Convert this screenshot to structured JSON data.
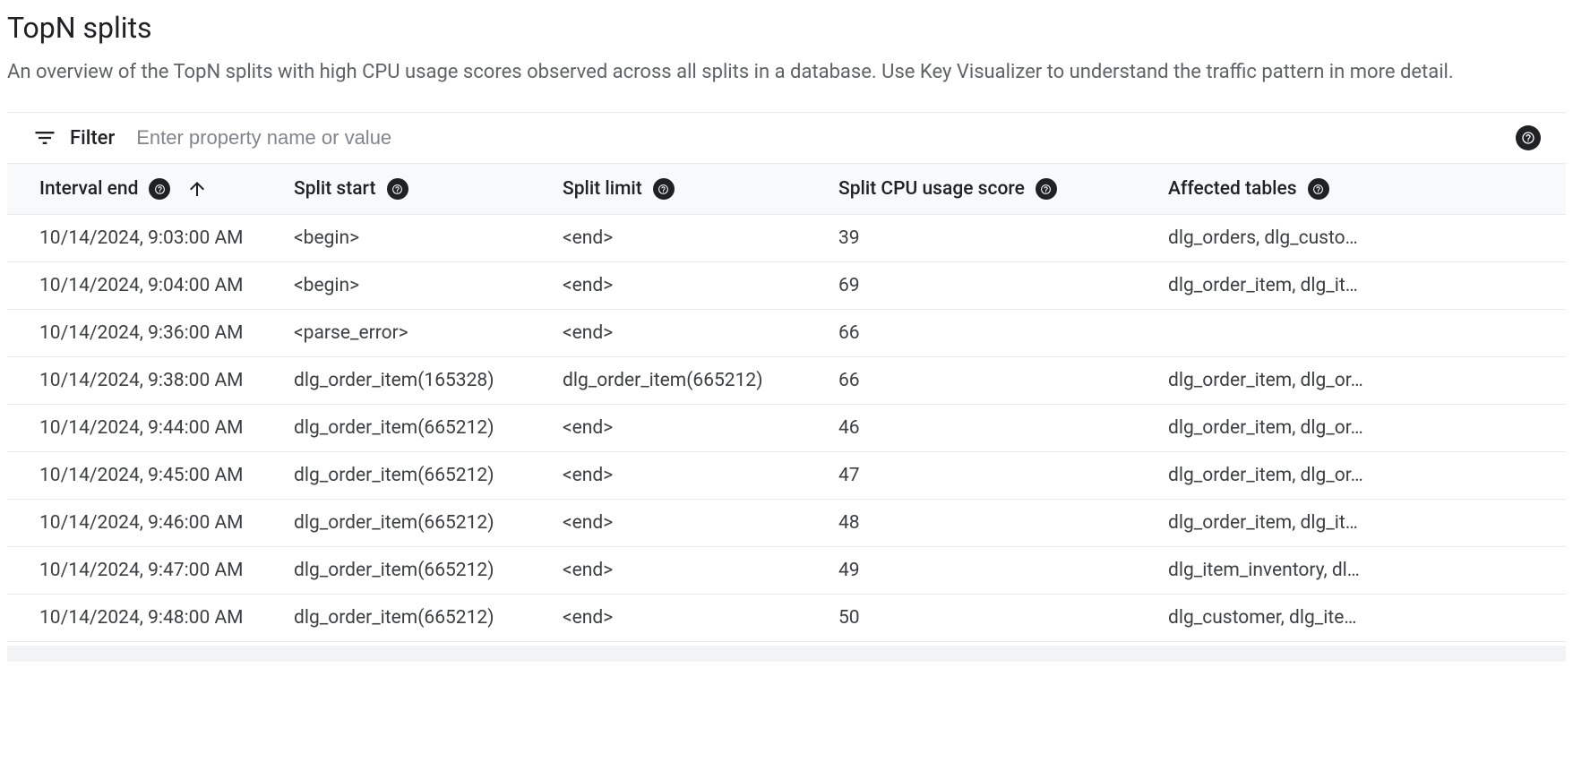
{
  "page": {
    "title": "TopN splits",
    "description": "An overview of the TopN splits with high CPU usage scores observed across all splits in a database. Use Key Visualizer to understand the traffic pattern in more detail."
  },
  "filter": {
    "label": "Filter",
    "placeholder": "Enter property name or value"
  },
  "columns": {
    "interval_end": "Interval end",
    "split_start": "Split start",
    "split_limit": "Split limit",
    "cpu_score": "Split CPU usage score",
    "affected_tables": "Affected tables"
  },
  "rows": [
    {
      "interval": "10/14/2024, 9:03:00 AM",
      "start": "<begin>",
      "limit": "<end>",
      "score": "39",
      "tables": "dlg_orders, dlg_custo…"
    },
    {
      "interval": "10/14/2024, 9:04:00 AM",
      "start": "<begin>",
      "limit": "<end>",
      "score": "69",
      "tables": "dlg_order_item, dlg_it…"
    },
    {
      "interval": "10/14/2024, 9:36:00 AM",
      "start": "<parse_error>",
      "limit": "<end>",
      "score": "66",
      "tables": ""
    },
    {
      "interval": "10/14/2024, 9:38:00 AM",
      "start": "dlg_order_item(165328)",
      "limit": "dlg_order_item(665212)",
      "score": "66",
      "tables": "dlg_order_item, dlg_or…"
    },
    {
      "interval": "10/14/2024, 9:44:00 AM",
      "start": "dlg_order_item(665212)",
      "limit": "<end>",
      "score": "46",
      "tables": "dlg_order_item, dlg_or…"
    },
    {
      "interval": "10/14/2024, 9:45:00 AM",
      "start": "dlg_order_item(665212)",
      "limit": "<end>",
      "score": "47",
      "tables": "dlg_order_item, dlg_or…"
    },
    {
      "interval": "10/14/2024, 9:46:00 AM",
      "start": "dlg_order_item(665212)",
      "limit": "<end>",
      "score": "48",
      "tables": "dlg_order_item, dlg_it…"
    },
    {
      "interval": "10/14/2024, 9:47:00 AM",
      "start": "dlg_order_item(665212)",
      "limit": "<end>",
      "score": "49",
      "tables": "dlg_item_inventory, dl…"
    },
    {
      "interval": "10/14/2024, 9:48:00 AM",
      "start": "dlg_order_item(665212)",
      "limit": "<end>",
      "score": "50",
      "tables": "dlg_customer, dlg_ite…"
    }
  ],
  "colors": {
    "text_primary": "#202124",
    "text_secondary": "#5f6368",
    "text_body": "#3c4043",
    "placeholder": "#80868b",
    "border": "#e8eaed",
    "header_bg": "#f8f9fa",
    "background": "#ffffff",
    "scrollbar": "#f1f3f4"
  }
}
